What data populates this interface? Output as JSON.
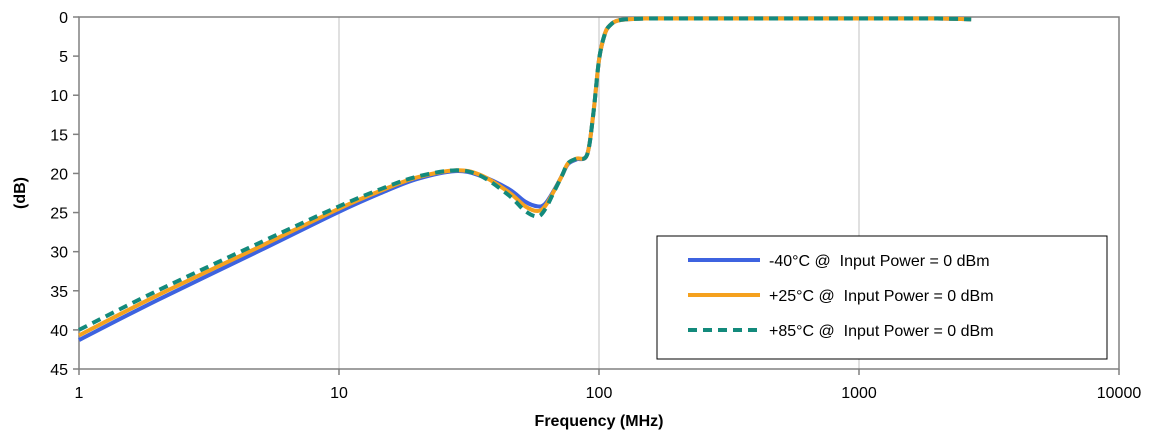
{
  "chart_data": {
    "type": "line",
    "title": "",
    "xlabel": "Frequency (MHz)",
    "ylabel": "(dB)",
    "xscale": "log",
    "xlim": [
      1,
      10000
    ],
    "ylim": [
      0,
      45
    ],
    "y_inverted": true,
    "grid": "vertical major only",
    "legend_position": "bottom-right",
    "x_tick_labels": [
      "1",
      "10",
      "100",
      "1000",
      "10000"
    ],
    "y_tick_labels": [
      "0",
      "5",
      "10",
      "15",
      "20",
      "25",
      "30",
      "35",
      "40",
      "45"
    ],
    "series": [
      {
        "name": "-40°C @  Input Power = 0 dBm",
        "color": "#3d63e0",
        "style": "solid",
        "x": [
          1,
          2,
          5,
          10,
          15,
          20,
          28,
          35,
          45,
          52,
          58,
          62,
          67,
          72,
          76,
          82,
          90,
          95,
          100,
          105,
          110,
          120,
          150,
          200,
          500,
          1000,
          2000,
          2700
        ],
        "y": [
          41.3,
          36.2,
          29.8,
          24.9,
          22.3,
          20.7,
          19.7,
          20.3,
          22.0,
          23.6,
          24.2,
          23.9,
          22.2,
          20.3,
          18.8,
          18.2,
          17.6,
          12.5,
          5.5,
          2.3,
          1.1,
          0.4,
          0.2,
          0.2,
          0.2,
          0.2,
          0.2,
          0.3
        ]
      },
      {
        "name": "+25°C @  Input Power = 0 dBm",
        "color": "#f5a11e",
        "style": "solid",
        "x": [
          1,
          2,
          5,
          10,
          15,
          20,
          28,
          35,
          45,
          52,
          58,
          62,
          67,
          72,
          76,
          82,
          90,
          95,
          100,
          105,
          110,
          120,
          150,
          200,
          500,
          1000,
          2000,
          2700
        ],
        "y": [
          40.7,
          35.6,
          29.3,
          24.5,
          22.0,
          20.5,
          19.6,
          20.2,
          22.4,
          24.2,
          24.8,
          24.2,
          22.3,
          20.3,
          18.7,
          18.1,
          17.6,
          12.5,
          5.5,
          2.3,
          1.1,
          0.4,
          0.2,
          0.2,
          0.2,
          0.2,
          0.2,
          0.3
        ]
      },
      {
        "name": "+85°C @  Input Power = 0 dBm",
        "color": "#138a7c",
        "style": "dashed",
        "x": [
          1,
          2,
          5,
          10,
          15,
          20,
          28,
          35,
          45,
          52,
          58,
          62,
          67,
          72,
          76,
          82,
          90,
          95,
          100,
          105,
          110,
          120,
          150,
          200,
          500,
          1000,
          2000,
          2700
        ],
        "y": [
          40.0,
          35.0,
          28.8,
          24.2,
          21.8,
          20.4,
          19.6,
          20.3,
          22.8,
          24.8,
          25.5,
          24.6,
          22.4,
          20.3,
          18.7,
          18.1,
          17.6,
          12.5,
          5.5,
          2.3,
          1.1,
          0.4,
          0.2,
          0.2,
          0.2,
          0.2,
          0.2,
          0.3
        ]
      }
    ]
  }
}
